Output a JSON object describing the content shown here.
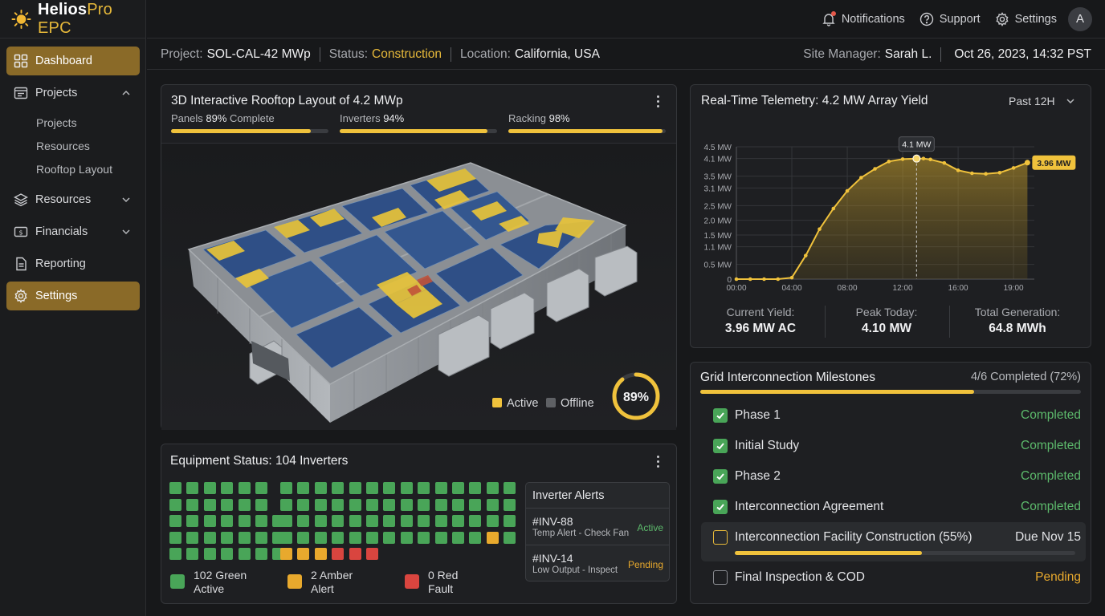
{
  "app": {
    "name_part1": "Helios",
    "name_part2": "Pro EPC"
  },
  "sidebar": {
    "items": [
      {
        "label": "Dashboard"
      },
      {
        "label": "Projects"
      },
      {
        "label": "Resources"
      },
      {
        "label": "Financials"
      },
      {
        "label": "Reporting"
      },
      {
        "label": "Settings"
      }
    ],
    "subitems": [
      {
        "label": "Projects"
      },
      {
        "label": "Resources"
      },
      {
        "label": "Rooftop Layout"
      }
    ]
  },
  "topbar": {
    "notifications": "Notifications",
    "support": "Support",
    "settings": "Settings",
    "avatar": "A"
  },
  "project": {
    "project_label": "Project:",
    "project_value": "SOL-CAL-42 MWp",
    "status_label": "Status:",
    "status_value": "Construction",
    "location_label": "Location:",
    "location_value": "California, USA",
    "manager_label": "Site Manager:",
    "manager_value": "Sarah L.",
    "datetime": "Oct 26, 2023, 14:32 PST"
  },
  "rooftop": {
    "title": "3D Interactive Rooftop Layout of 4.2 MWp",
    "progress": [
      {
        "label": "Panels",
        "value": "89%",
        "suffix": "Complete",
        "fraction": 0.89
      },
      {
        "label": "Inverters",
        "value": "94%",
        "suffix": "",
        "fraction": 0.94
      },
      {
        "label": "Racking",
        "value": "98%",
        "suffix": "",
        "fraction": 0.98
      }
    ],
    "legend_active": "Active",
    "legend_offline": "Offline",
    "completion": "89%",
    "completion_fraction": 0.89
  },
  "telemetry": {
    "title": "Real-Time Telemetry: 4.2 MW Array Yield",
    "range": "Past 12H",
    "stats": [
      {
        "label": "Current Yield:",
        "value": "3.96 MW AC"
      },
      {
        "label": "Peak Today:",
        "value": "4.10 MW"
      },
      {
        "label": "Total Generation:",
        "value": "64.8 MWh"
      }
    ]
  },
  "chart_data": {
    "type": "area",
    "title": "",
    "xlabel": "",
    "ylabel": "",
    "y_ticks": [
      "0",
      "0.5 MW",
      "1.1 MW",
      "1.5 MW",
      "2.0 MW",
      "2.5 MW",
      "3.1 MW",
      "3.5 MW",
      "4.1 MW",
      "4.5 MW"
    ],
    "x_ticks": [
      "00:00",
      "04:00",
      "08:00",
      "12:00",
      "16:00",
      "19:00"
    ],
    "ylim": [
      0,
      4.5
    ],
    "xlim": [
      0,
      21.5
    ],
    "x_hours": [
      0,
      1,
      2,
      3,
      4,
      5,
      6,
      7,
      8,
      9,
      10,
      11,
      12,
      13,
      13.5,
      14,
      15,
      16,
      17,
      18,
      19,
      20,
      21
    ],
    "values": [
      0,
      0,
      0,
      0,
      0.05,
      0.8,
      1.7,
      2.4,
      3.0,
      3.45,
      3.75,
      4.0,
      4.08,
      4.1,
      4.1,
      4.07,
      3.95,
      3.7,
      3.6,
      3.58,
      3.62,
      3.78,
      3.96
    ],
    "peak_label": "4.1 MW",
    "current_label": "3.96 MW",
    "grid": true
  },
  "milestones": {
    "title": "Grid Interconnection Milestones",
    "summary": "4/6 Completed (72%)",
    "overall_fraction": 0.72,
    "items": [
      {
        "label": "Phase 1",
        "status": "Completed",
        "state": "done"
      },
      {
        "label": "Initial Study",
        "status": "Completed",
        "state": "done"
      },
      {
        "label": "Phase 2",
        "status": "Completed",
        "state": "done"
      },
      {
        "label": "Interconnection Agreement",
        "status": "Completed",
        "state": "done"
      },
      {
        "label": "Interconnection Facility Construction (55%)",
        "status": "Due Nov 15",
        "state": "current",
        "fraction": 0.55
      },
      {
        "label": "Final Inspection & COD",
        "status": "Pending",
        "state": "pending"
      }
    ]
  },
  "equipment": {
    "title": "Equipment Status: 104 Inverters",
    "green_count": 102,
    "amber_count": 2,
    "red_count": 0,
    "counts": [
      {
        "line1": "102 Green",
        "line2": "Active"
      },
      {
        "line1": "2 Amber",
        "line2": "Alert"
      },
      {
        "line1": "0 Red",
        "line2": "Fault"
      }
    ],
    "alerts_title": "Inverter Alerts",
    "alerts": [
      {
        "id": "#INV-88",
        "desc": "Temp Alert - Check Fan",
        "status": "Active"
      },
      {
        "id": "#INV-14",
        "desc": "Low Output - Inspect",
        "status": "Pending"
      }
    ]
  },
  "colors": {
    "accent": "#e7b93a",
    "green": "#49a558",
    "amber": "#e8a92d",
    "red": "#d9453f",
    "panel": "#1e1f22"
  }
}
